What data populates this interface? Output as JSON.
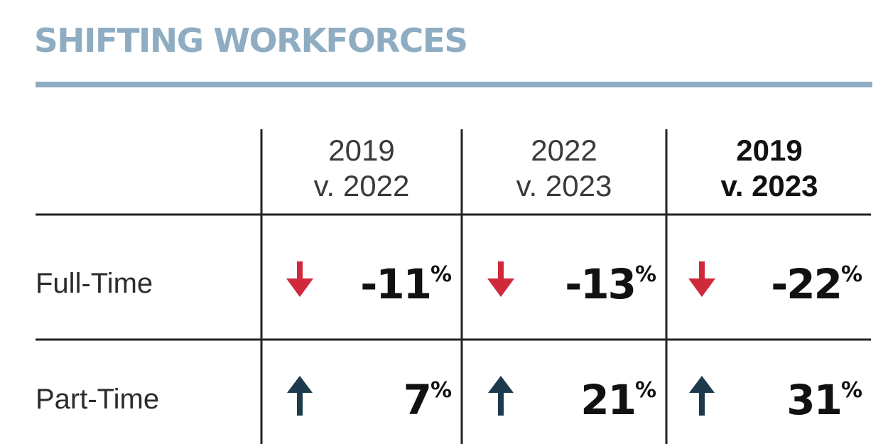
{
  "chart_data": {
    "type": "table",
    "title": "SHIFTING WORKFORCES",
    "columns": [
      {
        "line1": "2019",
        "line2": "v. 2022",
        "bold": false
      },
      {
        "line1": "2022",
        "line2": "v. 2023",
        "bold": false
      },
      {
        "line1": "2019",
        "line2": "v. 2023",
        "bold": true
      }
    ],
    "rows": [
      {
        "label": "Full-Time",
        "values": [
          "-11",
          "-13",
          "-22"
        ],
        "direction": "down"
      },
      {
        "label": "Part-Time",
        "values": [
          "7",
          "21",
          "31"
        ],
        "direction": "up"
      }
    ],
    "unit": "%"
  },
  "colors": {
    "title": "#8fadc2",
    "down_arrow": "#d0293b",
    "up_arrow": "#1d3b4d",
    "grid": "#222222"
  },
  "icons": {
    "down": "arrow-down-icon",
    "up": "arrow-up-icon"
  }
}
